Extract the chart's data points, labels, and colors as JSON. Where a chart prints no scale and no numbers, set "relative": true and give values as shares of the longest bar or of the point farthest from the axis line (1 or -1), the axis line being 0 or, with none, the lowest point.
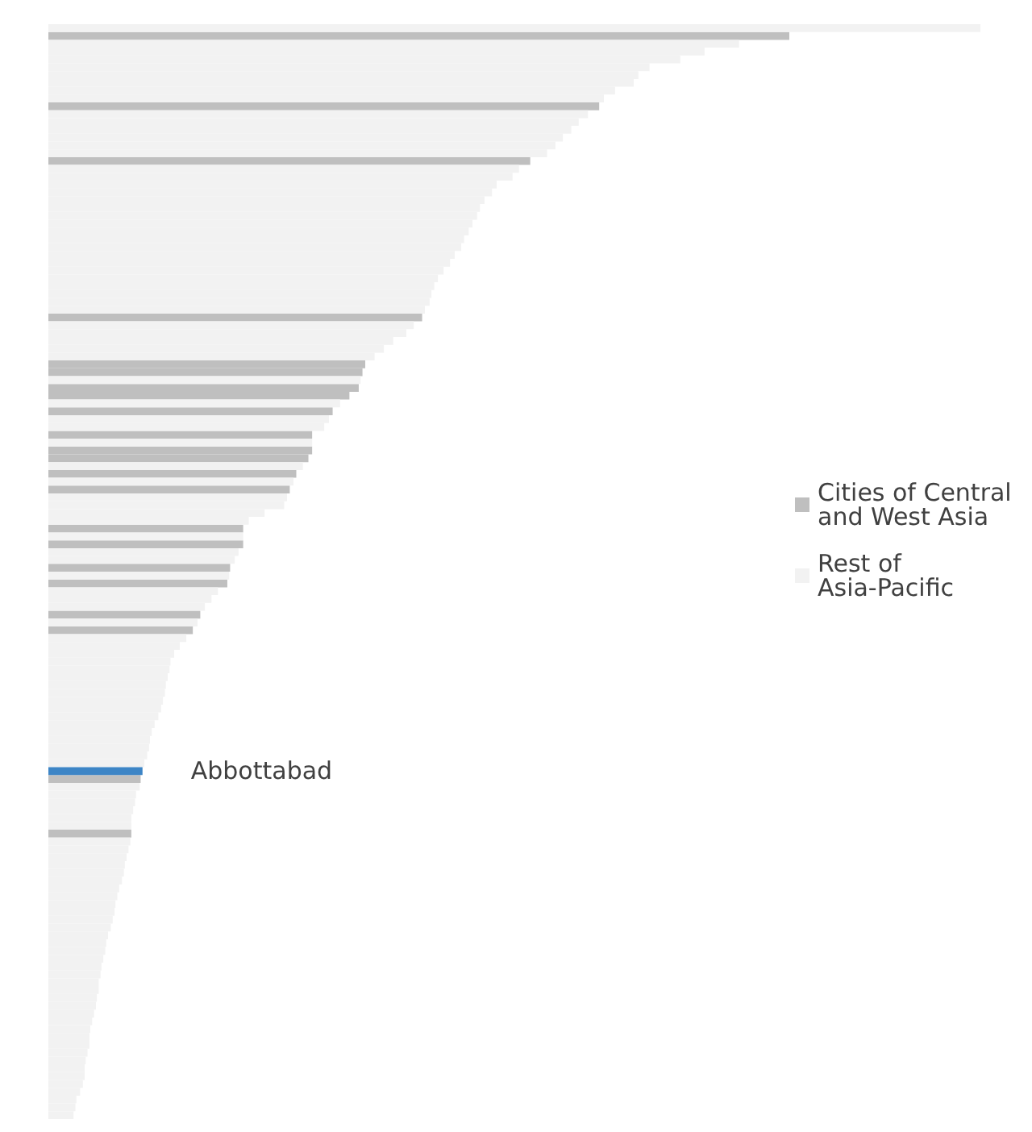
{
  "chart_data": {
    "type": "bar",
    "orientation": "horizontal",
    "relative": true,
    "stacked": true,
    "legend": "right",
    "annotations": [
      "Abbottabad"
    ],
    "categories": [
      null,
      null,
      null,
      null,
      null,
      null,
      null,
      null,
      null,
      null,
      null,
      null,
      null,
      null,
      null,
      null,
      null,
      null,
      null,
      null,
      null,
      null,
      null,
      null,
      null,
      null,
      null,
      null,
      null,
      null,
      null,
      null,
      null,
      null,
      null,
      null,
      null,
      null,
      null,
      null,
      null,
      null,
      null,
      null,
      null,
      null,
      null,
      null,
      null,
      null,
      null,
      null,
      null,
      null,
      null,
      null,
      null,
      null,
      null,
      null,
      null,
      null,
      null,
      null,
      null,
      null,
      null,
      null,
      null,
      null,
      null,
      null,
      null,
      null,
      null,
      null,
      null,
      null,
      null,
      null,
      null,
      null,
      null,
      null,
      null,
      null,
      null,
      null,
      null,
      null,
      null,
      null,
      null,
      null,
      null,
      null,
      null,
      null,
      null,
      null,
      null,
      null,
      null,
      null,
      null,
      null,
      null,
      null,
      null,
      null,
      null,
      null,
      null,
      null,
      null,
      null,
      null,
      null,
      null,
      null,
      null,
      null,
      null,
      null,
      null,
      null,
      null,
      null,
      null,
      null,
      null,
      null,
      null,
      null,
      null,
      null,
      null,
      null,
      null,
      null
    ],
    "series": [
      {
        "name": "Cities of Central and West Asia",
        "color": "#bfbfbf",
        "values": [
          0,
          0.795,
          0,
          0,
          0,
          0,
          0,
          0,
          0,
          0,
          0.591,
          0,
          0,
          0,
          0,
          0,
          0,
          0.517,
          0,
          0,
          0,
          0,
          0,
          0,
          0,
          0,
          0,
          0,
          0,
          0,
          0,
          0,
          0,
          0,
          0,
          0,
          0,
          0.401,
          0,
          0,
          0,
          0,
          0,
          0.34,
          0.337,
          0,
          0.333,
          0.323,
          0,
          0.305,
          0,
          0,
          0.283,
          0,
          0.283,
          0.279,
          0,
          0.266,
          0,
          0.259,
          0,
          0,
          0,
          0,
          0.209,
          0,
          0.209,
          0,
          0,
          0.195,
          0,
          0.192,
          0,
          0,
          0,
          0.163,
          0,
          0.155,
          0,
          0,
          0,
          0,
          0,
          0,
          0,
          0,
          0,
          0,
          0,
          0,
          0,
          0,
          0,
          0,
          0,
          0,
          0.099,
          0,
          0,
          0,
          0,
          0,
          0,
          0.089,
          0,
          0,
          0,
          0,
          0,
          0,
          0,
          0,
          0,
          0,
          0,
          0,
          0,
          0,
          0,
          0,
          0,
          0,
          0,
          0,
          0,
          0,
          0,
          0,
          0,
          0,
          0,
          0,
          0,
          0,
          0,
          0,
          0,
          0,
          0,
          0
        ]
      },
      {
        "name": "Rest of Asia-Pacific",
        "color": "#f2f2f2",
        "values": [
          1.0,
          0,
          0.741,
          0.704,
          0.678,
          0.645,
          0.633,
          0.628,
          0.608,
          0.596,
          0,
          0.579,
          0.569,
          0.561,
          0.552,
          0.544,
          0.535,
          0,
          0.505,
          0.498,
          0.481,
          0.476,
          0.468,
          0.463,
          0.46,
          0.455,
          0.451,
          0.446,
          0.443,
          0.436,
          0.431,
          0.424,
          0.418,
          0.414,
          0.411,
          0.409,
          0.404,
          0,
          0.392,
          0.384,
          0.37,
          0.36,
          0.35,
          0,
          0,
          0.335,
          0,
          0,
          0.313,
          0,
          0.301,
          0.296,
          0,
          0.283,
          0,
          0,
          0.273,
          0,
          0.263,
          0,
          0.256,
          0.253,
          0.232,
          0.215,
          0,
          0.209,
          0,
          0.204,
          0.2,
          0,
          0.194,
          0,
          0.182,
          0.175,
          0.168,
          0,
          0.16,
          0,
          0.148,
          0.141,
          0.135,
          0.131,
          0.13,
          0.128,
          0.126,
          0.125,
          0.123,
          0.121,
          0.118,
          0.114,
          0.111,
          0.109,
          0.108,
          0.106,
          0.103,
          0,
          0,
          0.098,
          0.094,
          0.093,
          0.091,
          0.089,
          0.089,
          0,
          0.088,
          0.086,
          0.084,
          0.082,
          0.081,
          0.079,
          0.076,
          0.074,
          0.072,
          0.071,
          0.069,
          0.067,
          0.064,
          0.062,
          0.061,
          0.059,
          0.057,
          0.056,
          0.054,
          0.054,
          0.052,
          0.051,
          0.049,
          0.047,
          0.045,
          0.044,
          0.044,
          0.042,
          0.04,
          0.039,
          0.039,
          0.037,
          0.034,
          0.03,
          0.029,
          0.027
        ]
      },
      {
        "color": "#3d85c6",
        "values": [
          0,
          0,
          0,
          0,
          0,
          0,
          0,
          0,
          0,
          0,
          0,
          0,
          0,
          0,
          0,
          0,
          0,
          0,
          0,
          0,
          0,
          0,
          0,
          0,
          0,
          0,
          0,
          0,
          0,
          0,
          0,
          0,
          0,
          0,
          0,
          0,
          0,
          0,
          0,
          0,
          0,
          0,
          0,
          0,
          0,
          0,
          0,
          0,
          0,
          0,
          0,
          0,
          0,
          0,
          0,
          0,
          0,
          0,
          0,
          0,
          0,
          0,
          0,
          0,
          0,
          0,
          0,
          0,
          0,
          0,
          0,
          0,
          0,
          0,
          0,
          0,
          0,
          0,
          0,
          0,
          0,
          0,
          0,
          0,
          0,
          0,
          0,
          0,
          0,
          0,
          0,
          0,
          0,
          0,
          0,
          0.101,
          0,
          0,
          0,
          0,
          0,
          0,
          0,
          0,
          0,
          0,
          0,
          0,
          0,
          0,
          0,
          0,
          0,
          0,
          0,
          0,
          0,
          0,
          0,
          0,
          0,
          0,
          0,
          0,
          0,
          0,
          0,
          0,
          0,
          0,
          0,
          0,
          0,
          0,
          0,
          0,
          0,
          0,
          0,
          0
        ]
      }
    ]
  }
}
